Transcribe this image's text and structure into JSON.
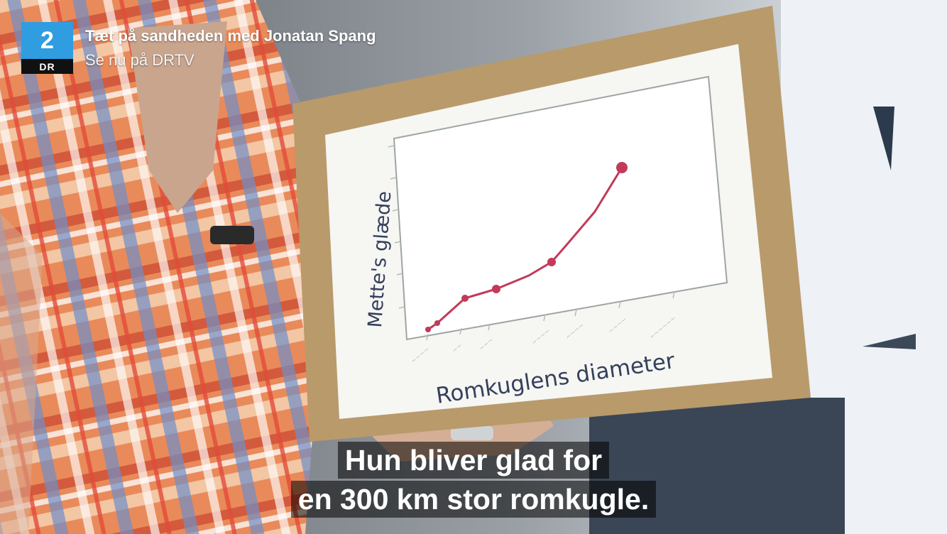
{
  "broadcast": {
    "channel_logo_number": "2",
    "channel_logo_name": "DR",
    "program_title": "Tæt på sandheden med Jonatan Spang",
    "program_subtitle": "Se nu på DRTV"
  },
  "sign": {
    "ylabel": "Mette's glæde",
    "xlabel": "Romkuglens diameter"
  },
  "subtitles": {
    "line1": "Hun bliver glad for",
    "line2": "en 300 km stor romkugle."
  },
  "colors": {
    "channel_blue": "#2f9de0",
    "chart_line": "#c23a5a",
    "cardboard": "#b99a6b"
  }
}
